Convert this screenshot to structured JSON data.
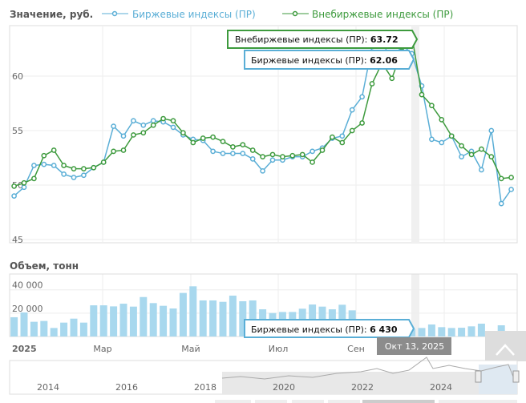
{
  "chart_data": [
    {
      "type": "line",
      "title": "Значение, руб.",
      "ylim": [
        44.7,
        64.6
      ],
      "yticks": [
        "45",
        "50",
        "55",
        "60"
      ],
      "ytick_values": [
        45,
        50,
        55,
        60
      ],
      "grid": true,
      "legend_position": "top",
      "series": [
        {
          "name": "Биржевые индексы (ПР)",
          "color": "#5aaed6",
          "values": [
            51.3,
            49.0,
            49.8,
            51.8,
            51.9,
            51.8,
            51.0,
            50.7,
            50.9,
            51.6,
            52.1,
            55.4,
            54.5,
            55.9,
            55.5,
            55.9,
            55.8,
            55.3,
            54.6,
            54.2,
            54.1,
            53.1,
            52.9,
            52.9,
            52.9,
            52.4,
            51.3,
            52.3,
            52.3,
            52.6,
            52.6,
            53.1,
            53.4,
            54.3,
            54.5,
            56.9,
            58.1,
            62.7,
            63.3,
            61.2,
            62.9,
            62.06,
            59.1,
            54.2,
            53.9,
            54.5,
            52.6,
            53.1,
            51.4,
            55.0,
            48.3,
            49.6
          ]
        },
        {
          "name": "Внебиржевые индексы (ПР)",
          "color": "#3d9a3d",
          "values": [
            51.5,
            51.5,
            49.9,
            50.2,
            50.6,
            52.7,
            53.2,
            51.8,
            51.5,
            51.5,
            51.6,
            52.1,
            53.1,
            53.2,
            54.6,
            54.8,
            55.5,
            56.1,
            55.9,
            54.8,
            53.9,
            54.3,
            54.4,
            54.0,
            53.5,
            53.7,
            53.2,
            52.6,
            52.8,
            52.6,
            52.7,
            52.8,
            52.1,
            53.2,
            54.4,
            53.9,
            55.0,
            55.7,
            59.3,
            61.2,
            59.8,
            62.3,
            63.72,
            58.3,
            57.3,
            56.0,
            54.5,
            53.6,
            52.8,
            53.3,
            52.6,
            50.6,
            50.7
          ]
        }
      ],
      "tooltips": [
        {
          "label": "Внебиржевые индексы (ПР): ",
          "value": "63.72"
        },
        {
          "label": "Биржевые индексы (ПР): ",
          "value": "62.06"
        }
      ]
    },
    {
      "type": "bar",
      "title": "Объем, тонн",
      "ylim": [
        0,
        53500
      ],
      "yticks": [
        "0",
        "20 000",
        "40 000"
      ],
      "ytick_values": [
        0,
        20000,
        40000
      ],
      "series": [
        {
          "name": "Биржевые индексы (ПР)",
          "color": "#a8d8ee",
          "values": [
            16500,
            20600,
            12600,
            13300,
            7300,
            11900,
            15300,
            11900,
            26700,
            26700,
            25800,
            28100,
            25600,
            33800,
            28600,
            26300,
            24000,
            37300,
            43000,
            30900,
            30900,
            29700,
            35000,
            30200,
            30900,
            23300,
            20100,
            21000,
            21000,
            23800,
            27400,
            25600,
            23300,
            27200,
            22400,
            15000,
            12000,
            9000,
            8000,
            7000,
            6430,
            7300,
            10300,
            8000,
            7300,
            7500,
            8700,
            11000,
            3400,
            9600,
            3900
          ]
        }
      ],
      "tooltip": {
        "label": "Биржевые индексы (ПР): ",
        "value": "6 430"
      }
    }
  ],
  "xaxis": {
    "labels": [
      "2025",
      "Мар",
      "Май",
      "Июл",
      "Сен"
    ],
    "highlight_date": "Окт 13, 2025"
  },
  "navigator": {
    "years": [
      "2014",
      "2016",
      "2018",
      "2020",
      "2022",
      "2024"
    ]
  }
}
